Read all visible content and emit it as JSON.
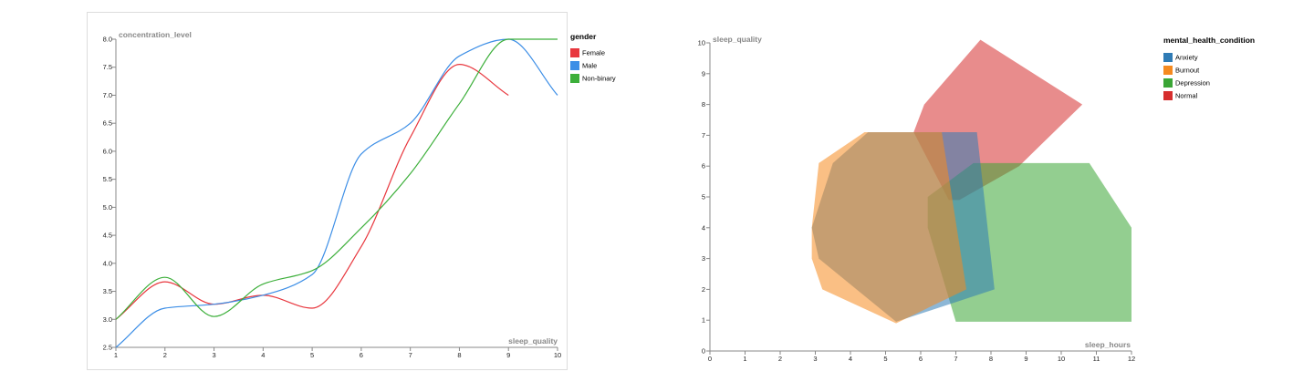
{
  "chart_data": [
    {
      "type": "line",
      "interpolation": "smooth",
      "xlabel": "sleep_quality",
      "ylabel": "concentration_level",
      "xlim": [
        1,
        10
      ],
      "ylim": [
        2.5,
        8.0
      ],
      "x_ticks": [
        "1",
        "2",
        "3",
        "4",
        "5",
        "6",
        "7",
        "8",
        "9",
        "10"
      ],
      "y_ticks": [
        "2.5",
        "3.0",
        "3.5",
        "4.0",
        "4.5",
        "5.0",
        "5.5",
        "6.0",
        "6.5",
        "7.0",
        "7.5",
        "8.0"
      ],
      "grid": false,
      "legend": {
        "title": "gender",
        "placement": "right",
        "items": [
          {
            "label": "Female",
            "color": "#e8373e"
          },
          {
            "label": "Male",
            "color": "#3c8ee6"
          },
          {
            "label": "Non-binary",
            "color": "#3caf3a"
          }
        ]
      },
      "series": [
        {
          "name": "Female",
          "color": "#e8373e",
          "x": [
            1,
            2,
            3,
            4,
            5,
            6,
            7,
            8,
            9
          ],
          "values": [
            3.0,
            3.67,
            3.27,
            3.43,
            3.2,
            4.3,
            6.25,
            7.55,
            7.0
          ]
        },
        {
          "name": "Male",
          "color": "#3c8ee6",
          "x": [
            1,
            2,
            3,
            4,
            5,
            6,
            7,
            8,
            9,
            10
          ],
          "values": [
            2.5,
            3.2,
            3.27,
            3.43,
            3.8,
            5.95,
            6.5,
            7.7,
            8.0,
            7.0
          ]
        },
        {
          "name": "Non-binary",
          "color": "#3caf3a",
          "x": [
            1,
            2,
            3,
            4,
            5,
            6,
            7,
            8,
            9,
            10
          ],
          "values": [
            3.0,
            3.75,
            3.05,
            3.63,
            3.87,
            4.63,
            5.6,
            6.85,
            8.0,
            8.0
          ]
        }
      ]
    },
    {
      "type": "area",
      "shape": "hull",
      "xlabel": "sleep_hours",
      "ylabel": "sleep_quality",
      "xlim": [
        0,
        12
      ],
      "ylim": [
        0,
        10
      ],
      "x_ticks": [
        "0",
        "1",
        "2",
        "3",
        "4",
        "5",
        "6",
        "7",
        "8",
        "9",
        "10",
        "11",
        "12"
      ],
      "y_ticks": [
        "0",
        "1",
        "2",
        "3",
        "4",
        "5",
        "6",
        "7",
        "8",
        "9",
        "10"
      ],
      "grid": false,
      "opacity": 0.55,
      "legend": {
        "title": "mental_health_condition",
        "placement": "right",
        "items": [
          {
            "label": "Anxiety",
            "color": "#2f7bb5"
          },
          {
            "label": "Burnout",
            "color": "#f58a1f"
          },
          {
            "label": "Depression",
            "color": "#3aa535"
          },
          {
            "label": "Normal",
            "color": "#d62e2e"
          }
        ]
      },
      "series": [
        {
          "name": "Normal",
          "color": "#d62e2e",
          "points": [
            [
              7.7,
              10.1
            ],
            [
              10.6,
              8.0
            ],
            [
              8.8,
              6.0
            ],
            [
              7.1,
              4.9
            ],
            [
              6.8,
              4.9
            ],
            [
              5.8,
              7.1
            ],
            [
              6.1,
              8.0
            ]
          ]
        },
        {
          "name": "Depression",
          "color": "#3aa535",
          "points": [
            [
              7.5,
              6.1
            ],
            [
              10.8,
              6.1
            ],
            [
              12.0,
              4.0
            ],
            [
              12.0,
              0.95
            ],
            [
              7.0,
              0.95
            ],
            [
              6.2,
              4.0
            ],
            [
              6.2,
              5.0
            ]
          ]
        },
        {
          "name": "Anxiety",
          "color": "#2f7bb5",
          "points": [
            [
              4.5,
              7.1
            ],
            [
              7.6,
              7.1
            ],
            [
              8.1,
              2.0
            ],
            [
              5.3,
              0.95
            ],
            [
              3.1,
              3.0
            ],
            [
              2.9,
              4.0
            ],
            [
              3.5,
              6.1
            ]
          ]
        },
        {
          "name": "Burnout",
          "color": "#f58a1f",
          "points": [
            [
              4.4,
              7.1
            ],
            [
              6.6,
              7.1
            ],
            [
              7.3,
              2.0
            ],
            [
              5.3,
              0.9
            ],
            [
              3.2,
              2.0
            ],
            [
              2.9,
              3.0
            ],
            [
              2.9,
              4.0
            ],
            [
              3.1,
              6.1
            ]
          ]
        }
      ]
    }
  ]
}
